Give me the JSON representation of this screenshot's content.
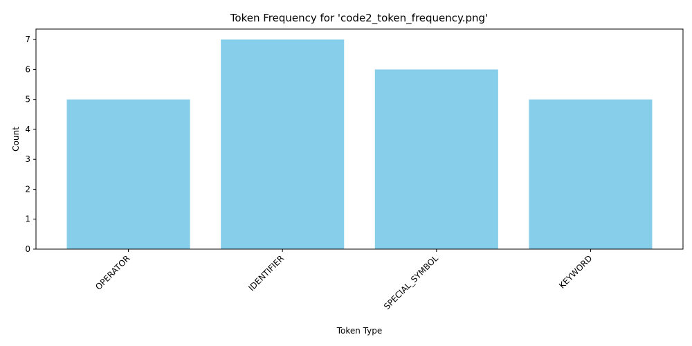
{
  "chart_data": {
    "type": "bar",
    "title": "Token Frequency for 'code2_token_frequency.png'",
    "xlabel": "Token Type",
    "ylabel": "Count",
    "categories": [
      "OPERATOR",
      "IDENTIFIER",
      "SPECIAL_SYMBOL",
      "KEYWORD"
    ],
    "values": [
      5,
      7,
      6,
      5
    ],
    "ylim": [
      0,
      7.35
    ],
    "yticks": [
      0,
      1,
      2,
      3,
      4,
      5,
      6,
      7
    ],
    "bar_color": "#87ceeb",
    "grid": false,
    "legend": "none"
  }
}
